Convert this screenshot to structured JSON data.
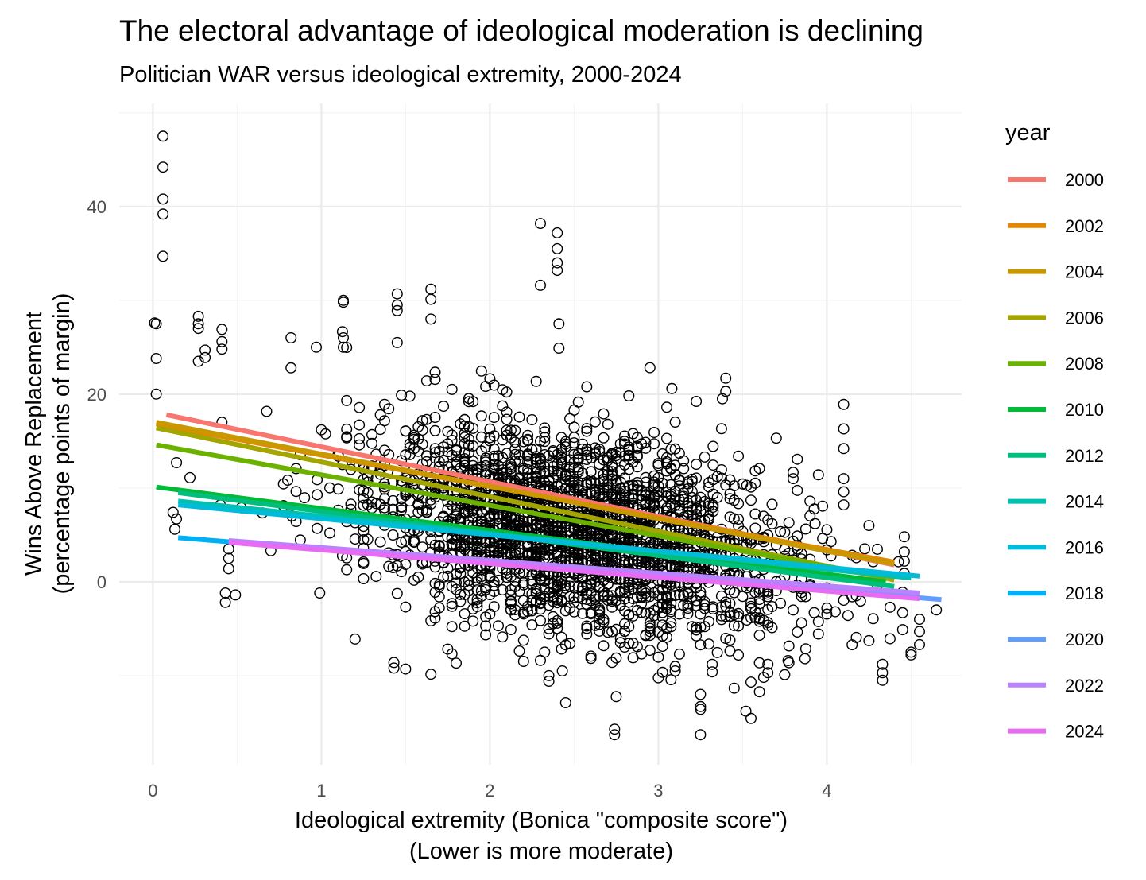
{
  "chart_data": {
    "type": "scatter",
    "title": "The electoral advantage of ideological moderation is declining",
    "subtitle": "Politician WAR versus ideological extremity, 2000-2024",
    "xlabel": [
      "Ideological extremity (Bonica \"composite score\")",
      "(Lower is more moderate)"
    ],
    "ylabel": [
      "Wins Above Replacement",
      "(percentage points of margin)"
    ],
    "xlim": [
      -0.2,
      4.8
    ],
    "ylim": [
      -19.5,
      51
    ],
    "x_ticks": [
      0,
      1,
      2,
      3,
      4
    ],
    "y_ticks": [
      0,
      20,
      40
    ],
    "grid": true,
    "legend": {
      "title": "year",
      "position": "right"
    },
    "point_style": "open black circles",
    "series": [
      {
        "name": "2000",
        "color": "#F8766D",
        "fit": {
          "x": [
            0.08,
            4.4
          ],
          "y": [
            17.8,
            1.8
          ]
        }
      },
      {
        "name": "2002",
        "color": "#E58700",
        "fit": {
          "x": [
            0.02,
            4.4
          ],
          "y": [
            16.8,
            2.1
          ]
        }
      },
      {
        "name": "2004",
        "color": "#C99800",
        "fit": {
          "x": [
            0.02,
            4.4
          ],
          "y": [
            17.0,
            1.9
          ]
        }
      },
      {
        "name": "2006",
        "color": "#A3A500",
        "fit": {
          "x": [
            0.02,
            4.4
          ],
          "y": [
            16.4,
            0.2
          ]
        }
      },
      {
        "name": "2008",
        "color": "#6BB100",
        "fit": {
          "x": [
            0.02,
            4.35
          ],
          "y": [
            14.6,
            0.5
          ]
        }
      },
      {
        "name": "2010",
        "color": "#00BA38",
        "fit": {
          "x": [
            0.02,
            4.35
          ],
          "y": [
            10.1,
            0.0
          ]
        }
      },
      {
        "name": "2012",
        "color": "#00BF7D",
        "fit": {
          "x": [
            0.15,
            4.4
          ],
          "y": [
            9.5,
            -0.5
          ]
        }
      },
      {
        "name": "2014",
        "color": "#00C0AF",
        "fit": {
          "x": [
            0.15,
            4.5
          ],
          "y": [
            8.6,
            0.4
          ]
        }
      },
      {
        "name": "2016",
        "color": "#00BCD8",
        "fit": {
          "x": [
            0.15,
            4.55
          ],
          "y": [
            8.2,
            0.6
          ]
        }
      },
      {
        "name": "2018",
        "color": "#00B0F6",
        "fit": {
          "x": [
            0.15,
            4.5
          ],
          "y": [
            4.7,
            -1.6
          ]
        }
      },
      {
        "name": "2020",
        "color": "#619CFF",
        "fit": {
          "x": [
            0.45,
            4.68
          ],
          "y": [
            4.3,
            -1.9
          ]
        }
      },
      {
        "name": "2022",
        "color": "#B983FF",
        "fit": {
          "x": [
            0.45,
            4.55
          ],
          "y": [
            4.4,
            -1.2
          ]
        }
      },
      {
        "name": "2024",
        "color": "#E76BF3",
        "fit": {
          "x": [
            0.45,
            4.55
          ],
          "y": [
            4.2,
            -1.8
          ]
        }
      }
    ],
    "points_sample": [
      {
        "x": 0.06,
        "y": 47.5
      },
      {
        "x": 0.06,
        "y": 44.2
      },
      {
        "x": 0.06,
        "y": 40.8
      },
      {
        "x": 0.06,
        "y": 39.2
      },
      {
        "x": 0.06,
        "y": 34.7
      },
      {
        "x": 0.01,
        "y": 27.6
      },
      {
        "x": 0.02,
        "y": 27.5
      },
      {
        "x": 0.02,
        "y": 23.8
      },
      {
        "x": 0.02,
        "y": 20.0
      },
      {
        "x": 0.27,
        "y": 28.3
      },
      {
        "x": 0.27,
        "y": 27.5
      },
      {
        "x": 0.27,
        "y": 27.0
      },
      {
        "x": 0.31,
        "y": 24.7
      },
      {
        "x": 0.31,
        "y": 23.9
      },
      {
        "x": 0.27,
        "y": 23.5
      },
      {
        "x": 0.41,
        "y": 26.9
      },
      {
        "x": 0.41,
        "y": 25.6
      },
      {
        "x": 0.41,
        "y": 24.8
      },
      {
        "x": 0.41,
        "y": 17.0
      },
      {
        "x": 0.43,
        "y": -1.2
      },
      {
        "x": 0.43,
        "y": -2.2
      },
      {
        "x": 0.49,
        "y": -1.4
      },
      {
        "x": 0.45,
        "y": 1.4
      },
      {
        "x": 0.45,
        "y": 2.5
      },
      {
        "x": 0.45,
        "y": 3.5
      },
      {
        "x": 0.22,
        "y": 11.1
      },
      {
        "x": 0.14,
        "y": 12.7
      },
      {
        "x": 0.14,
        "y": 6.7
      },
      {
        "x": 0.13,
        "y": 5.6
      },
      {
        "x": 0.12,
        "y": 7.4
      },
      {
        "x": 1.13,
        "y": 30.0
      },
      {
        "x": 1.13,
        "y": 29.8
      },
      {
        "x": 1.13,
        "y": 26.0
      },
      {
        "x": 1.13,
        "y": 25.0
      },
      {
        "x": 0.97,
        "y": 25.0
      },
      {
        "x": 0.82,
        "y": 26.0
      },
      {
        "x": 0.82,
        "y": 22.8
      },
      {
        "x": 1.45,
        "y": 30.7
      },
      {
        "x": 1.45,
        "y": 29.5
      },
      {
        "x": 1.45,
        "y": 28.9
      },
      {
        "x": 1.45,
        "y": 25.5
      },
      {
        "x": 1.65,
        "y": 31.2
      },
      {
        "x": 1.65,
        "y": 30.1
      },
      {
        "x": 1.65,
        "y": 28.0
      },
      {
        "x": 2.3,
        "y": 38.2
      },
      {
        "x": 2.3,
        "y": 31.6
      },
      {
        "x": 2.4,
        "y": 37.2
      },
      {
        "x": 2.4,
        "y": 35.5
      },
      {
        "x": 2.4,
        "y": 34.0
      },
      {
        "x": 2.4,
        "y": 33.2
      },
      {
        "x": 2.41,
        "y": 27.5
      },
      {
        "x": 2.41,
        "y": 24.9
      },
      {
        "x": 2.74,
        "y": -15.7
      },
      {
        "x": 2.74,
        "y": -16.3
      },
      {
        "x": 3.25,
        "y": -12.0
      },
      {
        "x": 3.25,
        "y": -13.3
      },
      {
        "x": 3.25,
        "y": -13.6
      },
      {
        "x": 3.25,
        "y": -16.3
      },
      {
        "x": 3.52,
        "y": -13.8
      },
      {
        "x": 3.55,
        "y": -10.7
      },
      {
        "x": 3.32,
        "y": -8.8
      },
      {
        "x": 3.32,
        "y": -9.6
      },
      {
        "x": 3.4,
        "y": 21.7
      },
      {
        "x": 3.4,
        "y": 20.3
      },
      {
        "x": 3.38,
        "y": 19.5
      },
      {
        "x": 3.08,
        "y": 20.6
      },
      {
        "x": 4.1,
        "y": 18.9
      },
      {
        "x": 4.1,
        "y": 16.3
      },
      {
        "x": 4.1,
        "y": 14.2
      },
      {
        "x": 4.1,
        "y": 11.0
      },
      {
        "x": 4.1,
        "y": 9.6
      },
      {
        "x": 4.1,
        "y": 8.2
      },
      {
        "x": 3.9,
        "y": 8.6
      },
      {
        "x": 3.93,
        "y": 6.2
      },
      {
        "x": 4.46,
        "y": 4.8
      },
      {
        "x": 4.46,
        "y": 3.2
      },
      {
        "x": 4.46,
        "y": 2.2
      },
      {
        "x": 4.46,
        "y": 0.9
      },
      {
        "x": 4.33,
        "y": -8.8
      },
      {
        "x": 4.33,
        "y": -9.7
      },
      {
        "x": 4.33,
        "y": -10.5
      },
      {
        "x": 4.5,
        "y": -7.5
      },
      {
        "x": 4.5,
        "y": -7.8
      },
      {
        "x": 4.65,
        "y": -3.0
      },
      {
        "x": 4.55,
        "y": -4.0
      },
      {
        "x": 4.55,
        "y": -5.3
      },
      {
        "x": 4.55,
        "y": -6.7
      },
      {
        "x": 4.45,
        "y": -3.3
      },
      {
        "x": 4.45,
        "y": -5.1
      },
      {
        "x": 4.0,
        "y": -2.8
      },
      {
        "x": 4.05,
        "y": -3.2
      },
      {
        "x": 3.65,
        "y": -8.8
      },
      {
        "x": 3.65,
        "y": -9.7
      },
      {
        "x": 3.75,
        "y": -9.9
      },
      {
        "x": 3.77,
        "y": -8.4
      },
      {
        "x": 3.87,
        "y": -8.2
      },
      {
        "x": 0.99,
        "y": -1.2
      },
      {
        "x": 1.2,
        "y": -6.1
      },
      {
        "x": 1.43,
        "y": -8.6
      },
      {
        "x": 1.43,
        "y": -9.2
      },
      {
        "x": 1.5,
        "y": -9.3
      },
      {
        "x": 2.35,
        "y": -10.0
      },
      {
        "x": 2.35,
        "y": -10.6
      },
      {
        "x": 2.43,
        "y": -9.5
      }
    ]
  }
}
